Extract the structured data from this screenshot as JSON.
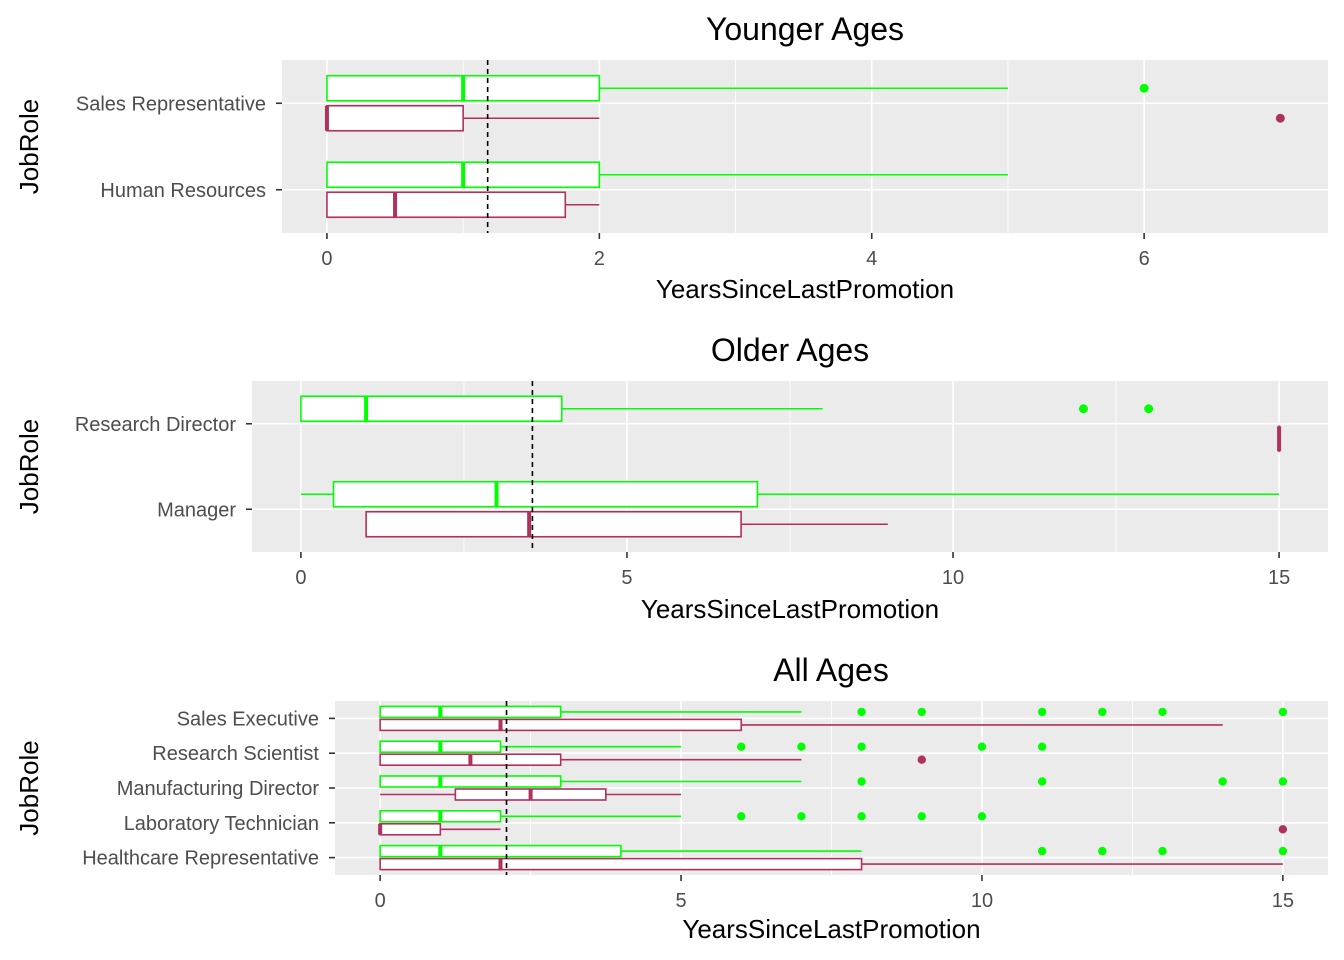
{
  "chart_data": [
    {
      "type": "box",
      "title": "Younger Ages",
      "xlabel": "YearsSinceLastPromotion",
      "ylabel": "JobRole",
      "xlim": [
        -0.33,
        7.35
      ],
      "xticks": [
        0,
        2,
        4,
        6
      ],
      "xtick_labels": [
        "0",
        "2",
        "4",
        "6"
      ],
      "reference_line_x": 1.18,
      "categories": [
        "Human Resources",
        "Sales Representative"
      ],
      "groups": [
        {
          "category": "Sales Representative",
          "color": "#00ff00",
          "min": 0,
          "q1": 0,
          "median": 1,
          "q3": 2,
          "max": 5,
          "outliers": [
            6
          ]
        },
        {
          "category": "Sales Representative",
          "color": "#b03060",
          "min": 0,
          "q1": 0,
          "median": 0,
          "q3": 1,
          "max": 2,
          "outliers": [
            7
          ]
        },
        {
          "category": "Human Resources",
          "color": "#00ff00",
          "min": 0,
          "q1": 0,
          "median": 1,
          "q3": 2,
          "max": 5,
          "outliers": []
        },
        {
          "category": "Human Resources",
          "color": "#b03060",
          "min": 0,
          "q1": 0,
          "median": 0.5,
          "q3": 1.75,
          "max": 2,
          "outliers": []
        }
      ]
    },
    {
      "type": "box",
      "title": "Older Ages",
      "xlabel": "YearsSinceLastPromotion",
      "ylabel": "JobRole",
      "xlim": [
        -0.75,
        15.75
      ],
      "xticks": [
        0,
        5,
        10,
        15
      ],
      "xtick_labels": [
        "0",
        "5",
        "10",
        "15"
      ],
      "reference_line_x": 3.55,
      "categories": [
        "Manager",
        "Research Director"
      ],
      "groups": [
        {
          "category": "Research Director",
          "color": "#00ff00",
          "min": 0,
          "q1": 0,
          "median": 1,
          "q3": 4,
          "max": 8,
          "outliers": [
            12,
            13
          ]
        },
        {
          "category": "Research Director",
          "color": "#b03060",
          "min": 15,
          "q1": 15,
          "median": 15,
          "q3": 15,
          "max": 15,
          "outliers": []
        },
        {
          "category": "Manager",
          "color": "#00ff00",
          "min": 0,
          "q1": 0.5,
          "median": 3,
          "q3": 7,
          "max": 15,
          "outliers": []
        },
        {
          "category": "Manager",
          "color": "#b03060",
          "min": 1,
          "q1": 1,
          "median": 3.5,
          "q3": 6.75,
          "max": 9,
          "outliers": []
        }
      ]
    },
    {
      "type": "box",
      "title": "All Ages",
      "xlabel": "YearsSinceLastPromotion",
      "ylabel": "JobRole",
      "xlim": [
        -0.75,
        15.75
      ],
      "xticks": [
        0,
        5,
        10,
        15
      ],
      "xtick_labels": [
        "0",
        "5",
        "10",
        "15"
      ],
      "reference_line_x": 2.1,
      "categories": [
        "Healthcare Representative",
        "Laboratory Technician",
        "Manufacturing Director",
        "Research Scientist",
        "Sales Executive"
      ],
      "groups": [
        {
          "category": "Sales Executive",
          "color": "#00ff00",
          "min": 0,
          "q1": 0,
          "median": 1,
          "q3": 3,
          "max": 7,
          "outliers": [
            8,
            9,
            11,
            12,
            13,
            15
          ]
        },
        {
          "category": "Sales Executive",
          "color": "#b03060",
          "min": 0,
          "q1": 0,
          "median": 2,
          "q3": 6,
          "max": 14,
          "outliers": []
        },
        {
          "category": "Research Scientist",
          "color": "#00ff00",
          "min": 0,
          "q1": 0,
          "median": 1,
          "q3": 2,
          "max": 5,
          "outliers": [
            6,
            7,
            8,
            10,
            11
          ]
        },
        {
          "category": "Research Scientist",
          "color": "#b03060",
          "min": 0,
          "q1": 0,
          "median": 1.5,
          "q3": 3,
          "max": 7,
          "outliers": [
            9
          ]
        },
        {
          "category": "Manufacturing Director",
          "color": "#00ff00",
          "min": 0,
          "q1": 0,
          "median": 1,
          "q3": 3,
          "max": 7,
          "outliers": [
            8,
            11,
            14,
            15
          ]
        },
        {
          "category": "Manufacturing Director",
          "color": "#b03060",
          "min": 0,
          "q1": 1.25,
          "median": 2.5,
          "q3": 3.75,
          "max": 5,
          "outliers": []
        },
        {
          "category": "Laboratory Technician",
          "color": "#00ff00",
          "min": 0,
          "q1": 0,
          "median": 1,
          "q3": 2,
          "max": 5,
          "outliers": [
            6,
            7,
            8,
            9,
            10
          ]
        },
        {
          "category": "Laboratory Technician",
          "color": "#b03060",
          "min": 0,
          "q1": 0,
          "median": 0,
          "q3": 1,
          "max": 2,
          "outliers": [
            15
          ]
        },
        {
          "category": "Healthcare Representative",
          "color": "#00ff00",
          "min": 0,
          "q1": 0,
          "median": 1,
          "q3": 4,
          "max": 8,
          "outliers": [
            11,
            12,
            13,
            15
          ]
        },
        {
          "category": "Healthcare Representative",
          "color": "#b03060",
          "min": 0,
          "q1": 0,
          "median": 2,
          "q3": 8,
          "max": 15,
          "outliers": []
        }
      ]
    }
  ]
}
